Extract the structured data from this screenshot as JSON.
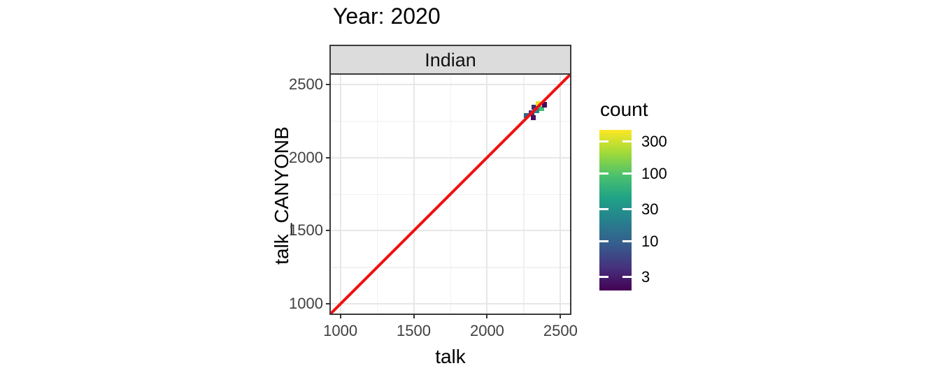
{
  "title": "Year: 2020",
  "facet_label": "Indian",
  "axes": {
    "x_label": "talk",
    "y_label": "talk_CANYONB"
  },
  "legend_title": "count",
  "colors": {
    "background": "#ffffff",
    "strip_background": "#dcdcdc",
    "panel_border": "#3b3b3b",
    "grid_major": "#e7e7e7",
    "grid_minor": "#f1f1f1",
    "axis_text": "#404040",
    "tick_mark": "#333333",
    "reference_line": "#ee1111"
  },
  "chart_data": {
    "type": "heatmap",
    "subtype": "bin2d-scatter",
    "title": "Year: 2020",
    "facet": "Indian",
    "xlabel": "talk",
    "ylabel": "talk_CANYONB",
    "xlim": [
      935,
      2565
    ],
    "ylim": [
      935,
      2565
    ],
    "x_major_ticks": [
      1000,
      1500,
      2000,
      2500
    ],
    "y_major_ticks": [
      1000,
      1500,
      2000,
      2500
    ],
    "x_minor_ticks": [
      1250,
      1750,
      2250
    ],
    "y_minor_ticks": [
      1250,
      1750,
      2250
    ],
    "grid": true,
    "bin_width": 35,
    "bins": [
      {
        "x": 2268,
        "y": 2286,
        "count": 15,
        "color": "#33638d"
      },
      {
        "x": 2303,
        "y": 2303,
        "count": 5,
        "color": "#46327e"
      },
      {
        "x": 2314,
        "y": 2272,
        "count": 3,
        "color": "#470d60"
      },
      {
        "x": 2322,
        "y": 2344,
        "count": 4,
        "color": "#3b2f70"
      },
      {
        "x": 2337,
        "y": 2321,
        "count": 30,
        "color": "#25898e"
      },
      {
        "x": 2349,
        "y": 2367,
        "count": 300,
        "count_note": "max bin",
        "color": "#e8e222"
      },
      {
        "x": 2372,
        "y": 2335,
        "count": 100,
        "color": "#42bd72"
      },
      {
        "x": 2391,
        "y": 2360,
        "count": 3,
        "color": "#450d57"
      }
    ],
    "reference_line": {
      "slope": 1,
      "intercept": 0,
      "color": "#ee1111",
      "width": 4
    },
    "legend": {
      "title": "count",
      "position": "right",
      "scale": "log10",
      "tick_values": [
        300,
        100,
        30,
        10,
        3
      ],
      "domain": [
        1.9,
        445
      ],
      "gradient_bottom_to_top": [
        "#440154",
        "#46327e",
        "#365c8d",
        "#277f8e",
        "#1fa187",
        "#4ac16d",
        "#a0da39",
        "#fde725"
      ]
    }
  }
}
